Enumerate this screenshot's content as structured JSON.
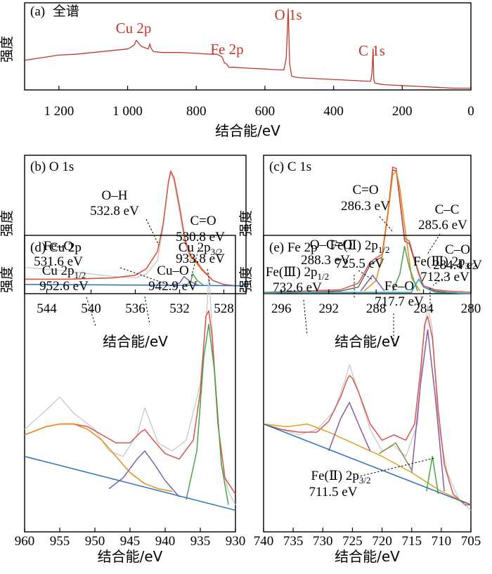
{
  "chart_data": [
    {
      "id": "a",
      "type": "line",
      "title": "(a)  全谱",
      "xlabel": "结合能/eV",
      "ylabel": "强度",
      "xlim": [
        1300,
        0
      ],
      "x_ticks": [
        1200,
        1000,
        800,
        600,
        400,
        200,
        0
      ],
      "x_tick_labels": [
        "1 200",
        "1 000",
        "800",
        "600",
        "400",
        "200",
        "0"
      ],
      "series": [
        {
          "color": "#c0392b",
          "x": [
            1300,
            1250,
            1200,
            1150,
            1100,
            1050,
            1000,
            990,
            980,
            975,
            960,
            940,
            935,
            932,
            925,
            900,
            850,
            800,
            760,
            740,
            725,
            718,
            712,
            705,
            690,
            650,
            600,
            560,
            545,
            538,
            532,
            528,
            522,
            515,
            500,
            450,
            400,
            350,
            300,
            292,
            288,
            285,
            283,
            280,
            270,
            250,
            200,
            150,
            100,
            50,
            20,
            0
          ],
          "y": [
            0.34,
            0.37,
            0.4,
            0.41,
            0.43,
            0.45,
            0.47,
            0.49,
            0.52,
            0.57,
            0.5,
            0.47,
            0.53,
            0.48,
            0.44,
            0.43,
            0.43,
            0.42,
            0.41,
            0.41,
            0.38,
            0.31,
            0.3,
            0.26,
            0.26,
            0.25,
            0.24,
            0.23,
            0.23,
            0.36,
            0.93,
            0.3,
            0.16,
            0.15,
            0.14,
            0.13,
            0.12,
            0.11,
            0.1,
            0.1,
            0.2,
            0.47,
            0.12,
            0.08,
            0.07,
            0.06,
            0.05,
            0.04,
            0.03,
            0.02,
            0.02,
            0.02
          ]
        }
      ],
      "annotations": [
        {
          "text": "Cu 2p",
          "x": 935,
          "y": 0.8
        },
        {
          "text": "Fe 2p",
          "x": 725,
          "y": 0.62
        },
        {
          "text": "O 1s",
          "x": 532,
          "y": 1.0
        },
        {
          "text": "C 1s",
          "x": 285,
          "y": 0.63
        }
      ]
    },
    {
      "id": "b",
      "type": "line",
      "title": "(b)  O 1s",
      "xlabel": "结合能/eV",
      "ylabel": "强度",
      "xlim": [
        546,
        526
      ],
      "x_ticks": [
        544,
        540,
        536,
        532,
        528
      ],
      "x_tick_labels": [
        "544",
        "540",
        "536",
        "532",
        "528"
      ],
      "series": [
        {
          "color": "#c8c8c8",
          "x": [
            546,
            542,
            538,
            536,
            535,
            534,
            533.5,
            533,
            532.8,
            532.5,
            532,
            531.5,
            531,
            530.8,
            530.5,
            530,
            529,
            528,
            527,
            526
          ],
          "y": [
            0.2,
            0.17,
            0.13,
            0.12,
            0.15,
            0.25,
            0.5,
            0.86,
            0.92,
            0.85,
            0.62,
            0.38,
            0.26,
            0.24,
            0.23,
            0.18,
            0.1,
            0.07,
            0.06,
            0.06
          ]
        },
        {
          "color": "#e88a1a",
          "x": [
            546,
            542,
            538,
            536,
            535,
            534,
            533.5,
            533,
            532.8,
            532.5,
            532,
            531.5,
            531,
            530.8,
            530.5,
            530,
            529,
            528,
            527,
            526
          ],
          "y": [
            0.11,
            0.11,
            0.12,
            0.14,
            0.19,
            0.32,
            0.52,
            0.85,
            0.93,
            0.88,
            0.66,
            0.4,
            0.28,
            0.26,
            0.24,
            0.18,
            0.1,
            0.07,
            0.06,
            0.06
          ]
        },
        {
          "color": "#d9534f",
          "x": [
            546,
            542,
            538,
            536,
            535,
            534,
            533.5,
            533,
            532.8,
            532.5,
            532,
            531.5,
            531,
            530.8,
            530.5,
            530,
            529,
            528,
            527,
            526
          ],
          "y": [
            0.11,
            0.11,
            0.12,
            0.14,
            0.19,
            0.32,
            0.52,
            0.85,
            0.93,
            0.88,
            0.66,
            0.41,
            0.29,
            0.27,
            0.25,
            0.19,
            0.1,
            0.07,
            0.06,
            0.06
          ]
        },
        {
          "color": "#7b5ea7",
          "x": [
            533,
            532,
            531.6,
            531,
            530.2
          ],
          "y": [
            0.06,
            0.08,
            0.13,
            0.09,
            0.06
          ]
        },
        {
          "color": "#4aa34a",
          "x": [
            531.5,
            531,
            530.8,
            530.4,
            529.8
          ],
          "y": [
            0.06,
            0.09,
            0.15,
            0.1,
            0.06
          ]
        },
        {
          "color": "#2c6fbb",
          "x": [
            546,
            526
          ],
          "y": [
            0.07,
            0.06
          ]
        }
      ],
      "annotations": [
        {
          "text": "O–H",
          "x": 532.8
        },
        {
          "text": "532.8 eV",
          "x": 532.8
        },
        {
          "text": "Fe–O",
          "x": 531.6
        },
        {
          "text": "531.6 eV",
          "x": 531.6
        },
        {
          "text": "C=O",
          "x": 530.8
        },
        {
          "text": "530.8 eV",
          "x": 530.8
        }
      ]
    },
    {
      "id": "c",
      "type": "line",
      "title": "(c)  C 1s",
      "xlabel": "结合能/eV",
      "ylabel": "强度",
      "xlim": [
        297.5,
        280
      ],
      "x_ticks": [
        296,
        292,
        288,
        284,
        280
      ],
      "x_tick_labels": [
        "296",
        "292",
        "288",
        "284",
        "280"
      ],
      "series": [
        {
          "color": "#555555",
          "x": [
            297.5,
            294,
            291,
            289.5,
            288.5,
            288,
            287.5,
            287,
            286.6,
            286.3,
            286,
            285.6,
            285.2,
            284.8,
            284.4,
            284,
            283,
            282,
            280
          ],
          "y": [
            0.0,
            0.01,
            0.02,
            0.05,
            0.22,
            0.25,
            0.28,
            0.6,
            0.94,
            0.93,
            0.7,
            0.4,
            0.38,
            0.26,
            0.15,
            0.05,
            0.02,
            0.01,
            0.0
          ]
        },
        {
          "color": "#d9534f",
          "x": [
            297.5,
            294,
            291,
            289.5,
            288.5,
            288,
            287.5,
            287,
            286.6,
            286.3,
            286,
            285.6,
            285.2,
            284.8,
            284.4,
            284,
            283,
            282,
            280
          ],
          "y": [
            0.01,
            0.02,
            0.03,
            0.08,
            0.24,
            0.27,
            0.3,
            0.62,
            0.96,
            0.95,
            0.72,
            0.42,
            0.4,
            0.27,
            0.16,
            0.06,
            0.03,
            0.02,
            0.01
          ]
        },
        {
          "color": "#e88a1a",
          "x": [
            289,
            288,
            287.5,
            287,
            286.6,
            286.3,
            286,
            285.5,
            285,
            284.3
          ],
          "y": [
            0.02,
            0.1,
            0.28,
            0.6,
            0.9,
            0.93,
            0.8,
            0.45,
            0.12,
            0.02
          ]
        },
        {
          "color": "#4aa34a",
          "x": [
            286.6,
            286,
            285.6,
            285.2,
            284.5
          ],
          "y": [
            0.02,
            0.15,
            0.36,
            0.2,
            0.02
          ]
        },
        {
          "color": "#7b5ea7",
          "x": [
            289.3,
            288.8,
            288.3,
            287.8,
            287.3
          ],
          "y": [
            0.02,
            0.08,
            0.14,
            0.08,
            0.02
          ]
        },
        {
          "color": "#27a6b0",
          "x": [
            297.5,
            292,
            288,
            285,
            284.8,
            284.4,
            284,
            283,
            280
          ],
          "y": [
            0.01,
            0.01,
            0.01,
            0.01,
            0.05,
            0.11,
            0.05,
            0.01,
            0.0
          ]
        }
      ],
      "annotations": [
        {
          "text": "C=O",
          "x": 286.3
        },
        {
          "text": "286.3 eV",
          "x": 286.3
        },
        {
          "text": "C–C",
          "x": 285.6
        },
        {
          "text": "285.6 eV",
          "x": 285.6
        },
        {
          "text": "O–C=O",
          "x": 288.3
        },
        {
          "text": "288.3 eV",
          "x": 288.3
        },
        {
          "text": "C–O",
          "x": 284.4
        },
        {
          "text": "284.4 eV",
          "x": 284.4
        }
      ]
    },
    {
      "id": "d",
      "type": "line",
      "title": "(d)  Cu 2p",
      "xlabel": "结合能/eV",
      "ylabel": "强度",
      "xlim": [
        960,
        930
      ],
      "x_ticks": [
        960,
        955,
        950,
        945,
        940,
        935,
        930
      ],
      "x_tick_labels": [
        "960",
        "955",
        "950",
        "945",
        "940",
        "935",
        "930"
      ],
      "series": [
        {
          "color": "#c8c8c8",
          "x": [
            960,
            957,
            955,
            953,
            950,
            948,
            946,
            944,
            942.9,
            941,
            939,
            937,
            935,
            934,
            933.8,
            933,
            932,
            931,
            930
          ],
          "y": [
            0.38,
            0.45,
            0.5,
            0.44,
            0.38,
            0.3,
            0.28,
            0.36,
            0.46,
            0.33,
            0.3,
            0.34,
            0.55,
            0.85,
            0.96,
            0.62,
            0.25,
            0.15,
            0.1
          ]
        },
        {
          "color": "#d9534f",
          "x": [
            960,
            957,
            955,
            953,
            951,
            949,
            947,
            945,
            943.5,
            942.9,
            942,
            940,
            938,
            936,
            935,
            934.2,
            933.8,
            933.3,
            932.5,
            931.5,
            930
          ],
          "y": [
            0.36,
            0.39,
            0.4,
            0.4,
            0.39,
            0.36,
            0.33,
            0.33,
            0.37,
            0.38,
            0.35,
            0.29,
            0.27,
            0.34,
            0.52,
            0.8,
            0.82,
            0.72,
            0.4,
            0.2,
            0.14
          ]
        },
        {
          "color": "#e88a1a",
          "x": [
            960,
            957,
            955,
            953,
            951,
            949,
            947,
            945,
            943,
            941,
            939
          ],
          "y": [
            0.36,
            0.39,
            0.4,
            0.4,
            0.38,
            0.34,
            0.28,
            0.22,
            0.18,
            0.16,
            0.15
          ]
        },
        {
          "color": "#7b5ea7",
          "x": [
            948,
            946,
            944,
            942.9,
            941.5,
            940,
            938
          ],
          "y": [
            0.16,
            0.2,
            0.27,
            0.3,
            0.25,
            0.19,
            0.13
          ]
        },
        {
          "color": "#4aa34a",
          "x": [
            937,
            935.5,
            934.5,
            933.8,
            933,
            932,
            931
          ],
          "y": [
            0.12,
            0.3,
            0.65,
            0.77,
            0.6,
            0.25,
            0.1
          ]
        },
        {
          "color": "#2c6fbb",
          "x": [
            960,
            930
          ],
          "y": [
            0.28,
            0.08
          ]
        }
      ],
      "annotations": [
        {
          "text": "Cu 2p",
          "sub": "3/2",
          "x": 933.8
        },
        {
          "text": "933.8 eV",
          "x": 933.8
        },
        {
          "text": "Cu 2p",
          "sub": "1/2",
          "x": 952.6
        },
        {
          "text": "952.6 eV",
          "x": 952.6
        },
        {
          "text": "Cu–O",
          "x": 942.9
        },
        {
          "text": "942.9 eV",
          "x": 942.9
        }
      ]
    },
    {
      "id": "e",
      "type": "line",
      "title": "(e)  Fe 2p",
      "xlabel": "结合能/eV",
      "ylabel": "强度",
      "xlim": [
        740,
        705
      ],
      "x_ticks": [
        740,
        735,
        730,
        725,
        720,
        715,
        710,
        705
      ],
      "x_tick_labels": [
        "740",
        "735",
        "730",
        "725",
        "720",
        "715",
        "710",
        "705"
      ],
      "series": [
        {
          "color": "#c8c8c8",
          "x": [
            740,
            737,
            734,
            731,
            728,
            726,
            725.5,
            724,
            722,
            720,
            718,
            716,
            714,
            713,
            712.3,
            711.5,
            710.5,
            709,
            707,
            705
          ],
          "y": [
            0.4,
            0.38,
            0.36,
            0.38,
            0.45,
            0.58,
            0.62,
            0.52,
            0.38,
            0.3,
            0.32,
            0.28,
            0.4,
            0.72,
            0.84,
            0.75,
            0.4,
            0.22,
            0.12,
            0.08
          ]
        },
        {
          "color": "#d9534f",
          "x": [
            740,
            737,
            734,
            731,
            729,
            727,
            726,
            725.5,
            725,
            724,
            722,
            720,
            718,
            716,
            714.5,
            713.5,
            712.8,
            712.3,
            711.5,
            710.5,
            709.5,
            708,
            706,
            705
          ],
          "y": [
            0.4,
            0.38,
            0.37,
            0.37,
            0.41,
            0.5,
            0.56,
            0.58,
            0.57,
            0.52,
            0.4,
            0.34,
            0.36,
            0.34,
            0.4,
            0.6,
            0.77,
            0.8,
            0.72,
            0.45,
            0.25,
            0.14,
            0.1,
            0.1
          ]
        },
        {
          "color": "#e0a020",
          "x": [
            740,
            736,
            732.6,
            729,
            725,
            720,
            715,
            710,
            705
          ],
          "y": [
            0.4,
            0.39,
            0.4,
            0.37,
            0.33,
            0.28,
            0.22,
            0.15,
            0.1
          ]
        },
        {
          "color": "#8a5aa0",
          "x": [
            729,
            727,
            725.5,
            724,
            722
          ],
          "y": [
            0.3,
            0.42,
            0.48,
            0.4,
            0.3
          ]
        },
        {
          "color": "#8a5aa0",
          "x": [
            715,
            713.5,
            712.3,
            711,
            709.5
          ],
          "y": [
            0.22,
            0.55,
            0.75,
            0.5,
            0.15
          ]
        },
        {
          "color": "#4aa34a",
          "x": [
            712.5,
            711.5,
            710.5
          ],
          "y": [
            0.15,
            0.28,
            0.14
          ]
        },
        {
          "color": "#8a8a4a",
          "x": [
            720.5,
            717.7,
            715
          ],
          "y": [
            0.29,
            0.33,
            0.23
          ]
        },
        {
          "color": "#2c6fbb",
          "x": [
            740,
            705
          ],
          "y": [
            0.4,
            0.1
          ]
        }
      ],
      "annotations": [
        {
          "text": "Fe(Ⅱ) 2p",
          "sub": "1/2",
          "x": 725.5
        },
        {
          "text": "725.5 eV",
          "x": 725.5
        },
        {
          "text": "Fe(Ⅲ) 2p",
          "sub": "3/2",
          "x": 712.3
        },
        {
          "text": "712.3 eV",
          "x": 712.3
        },
        {
          "text": "Fe(Ⅲ) 2p",
          "sub": "1/2",
          "x": 732.6
        },
        {
          "text": "732.6 eV",
          "x": 732.6
        },
        {
          "text": "Fe–O",
          "x": 717.7
        },
        {
          "text": "717.7 eV",
          "x": 717.7
        },
        {
          "text": "Fe(Ⅱ) 2p",
          "sub": "3/2",
          "x": 711.5
        },
        {
          "text": "711.5 eV",
          "x": 711.5
        }
      ]
    }
  ]
}
